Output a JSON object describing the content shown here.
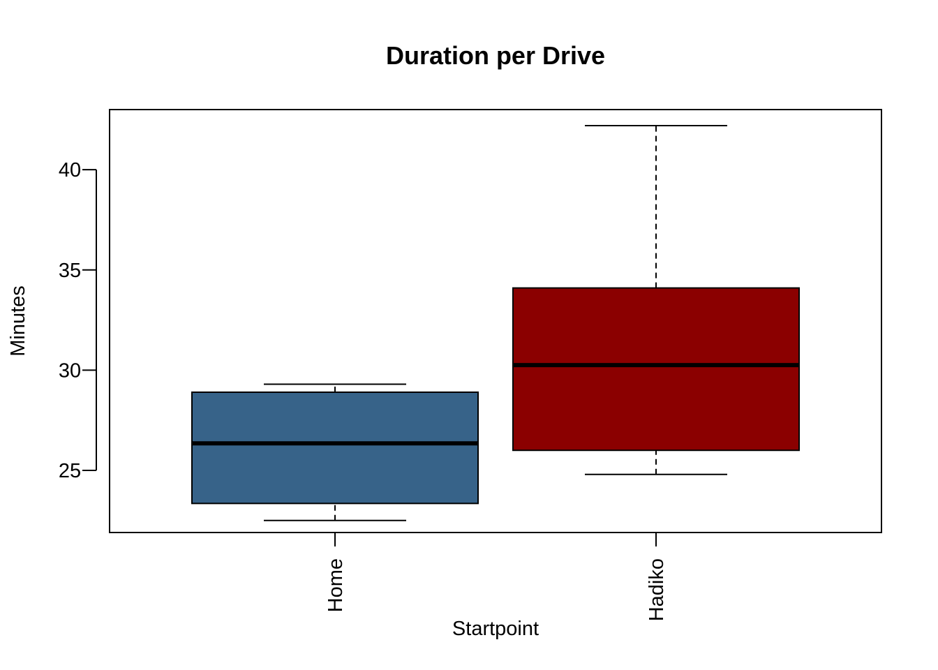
{
  "chart_data": {
    "type": "boxplot",
    "title": "Duration per Drive",
    "xlabel": "Startpoint",
    "ylabel": "Minutes",
    "ylim": [
      21.9,
      43.0
    ],
    "yticks": [
      25,
      30,
      35,
      40
    ],
    "yticks_labels": [
      "25",
      "30",
      "35",
      "40"
    ],
    "categories": [
      "Home",
      "Hadiko"
    ],
    "boxes": [
      {
        "category": "Home",
        "whisker_low": 22.5,
        "q1": 23.35,
        "median": 26.35,
        "q3": 28.9,
        "whisker_high": 29.3,
        "color": "#376389"
      },
      {
        "category": "Hadiko",
        "whisker_low": 24.8,
        "q1": 26.0,
        "median": 30.25,
        "q3": 34.1,
        "whisker_high": 42.2,
        "color": "#8B0000"
      }
    ],
    "grid": false,
    "legend": "none",
    "x_tick_label_rotation": "vertical"
  }
}
